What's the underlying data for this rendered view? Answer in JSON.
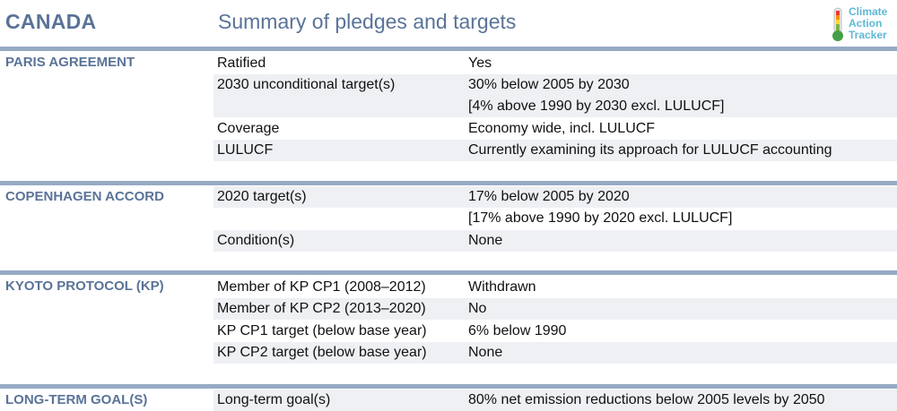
{
  "header": {
    "country": "CANADA",
    "title": "Summary of pledges and targets",
    "logo_lines": [
      "Climate",
      "Action",
      "Tracker"
    ]
  },
  "sections": [
    {
      "title": "PARIS AGREEMENT",
      "rows": [
        {
          "label": "Ratified",
          "value": "Yes"
        },
        {
          "label": "2030 unconditional target(s)",
          "value": "30% below 2005 by 2030"
        },
        {
          "label": "",
          "value": "[4% above 1990 by 2030 excl. LULUCF]"
        },
        {
          "label": "Coverage",
          "value": "Economy wide, incl. LULUCF"
        },
        {
          "label": "LULUCF",
          "value": "Currently examining its approach for LULUCF accounting"
        }
      ]
    },
    {
      "title": "COPENHAGEN ACCORD",
      "rows": [
        {
          "label": "2020 target(s)",
          "value": "17% below 2005 by 2020"
        },
        {
          "label": "",
          "value": "[17% above 1990 by 2020 excl. LULUCF]"
        },
        {
          "label": "Condition(s)",
          "value": "None"
        }
      ]
    },
    {
      "title": "KYOTO PROTOCOL (KP)",
      "rows": [
        {
          "label": "Member of KP CP1 (2008–2012)",
          "value": "Withdrawn"
        },
        {
          "label": "Member of KP CP2 (2013–2020)",
          "value": "No"
        },
        {
          "label": "KP CP1 target (below base year)",
          "value": "6% below 1990"
        },
        {
          "label": "KP CP2 target (below base year)",
          "value": "None"
        }
      ]
    },
    {
      "title": "LONG-TERM GOAL(S)",
      "rows": [
        {
          "label": "Long-term goal(s)",
          "value": "80% net emission reductions below 2005 levels by 2050"
        }
      ]
    }
  ]
}
